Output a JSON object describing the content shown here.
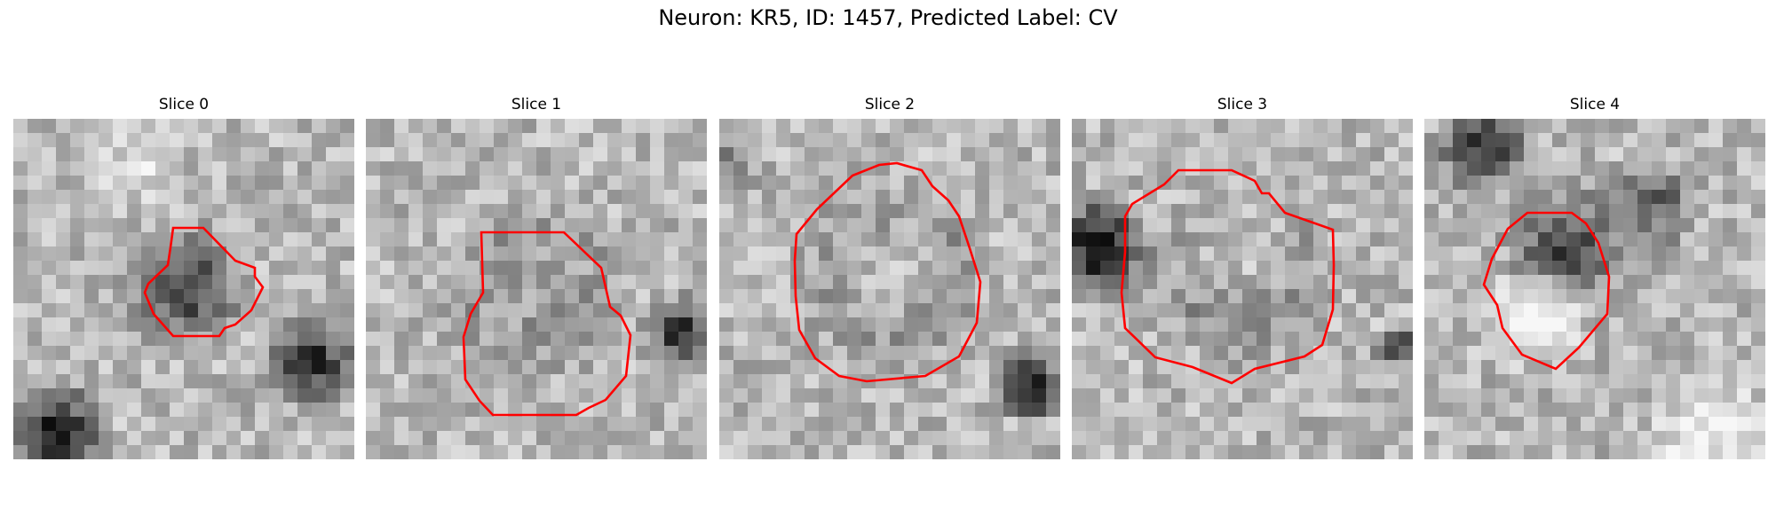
{
  "figure": {
    "suptitle": "Neuron: KR5, ID: 1457, Predicted Label: CV",
    "contour_color": "#ff0000",
    "colormap": "gray"
  },
  "slices": [
    {
      "title": "Slice 0"
    },
    {
      "title": "Slice 1"
    },
    {
      "title": "Slice 2"
    },
    {
      "title": "Slice 3"
    },
    {
      "title": "Slice 4"
    }
  ]
}
